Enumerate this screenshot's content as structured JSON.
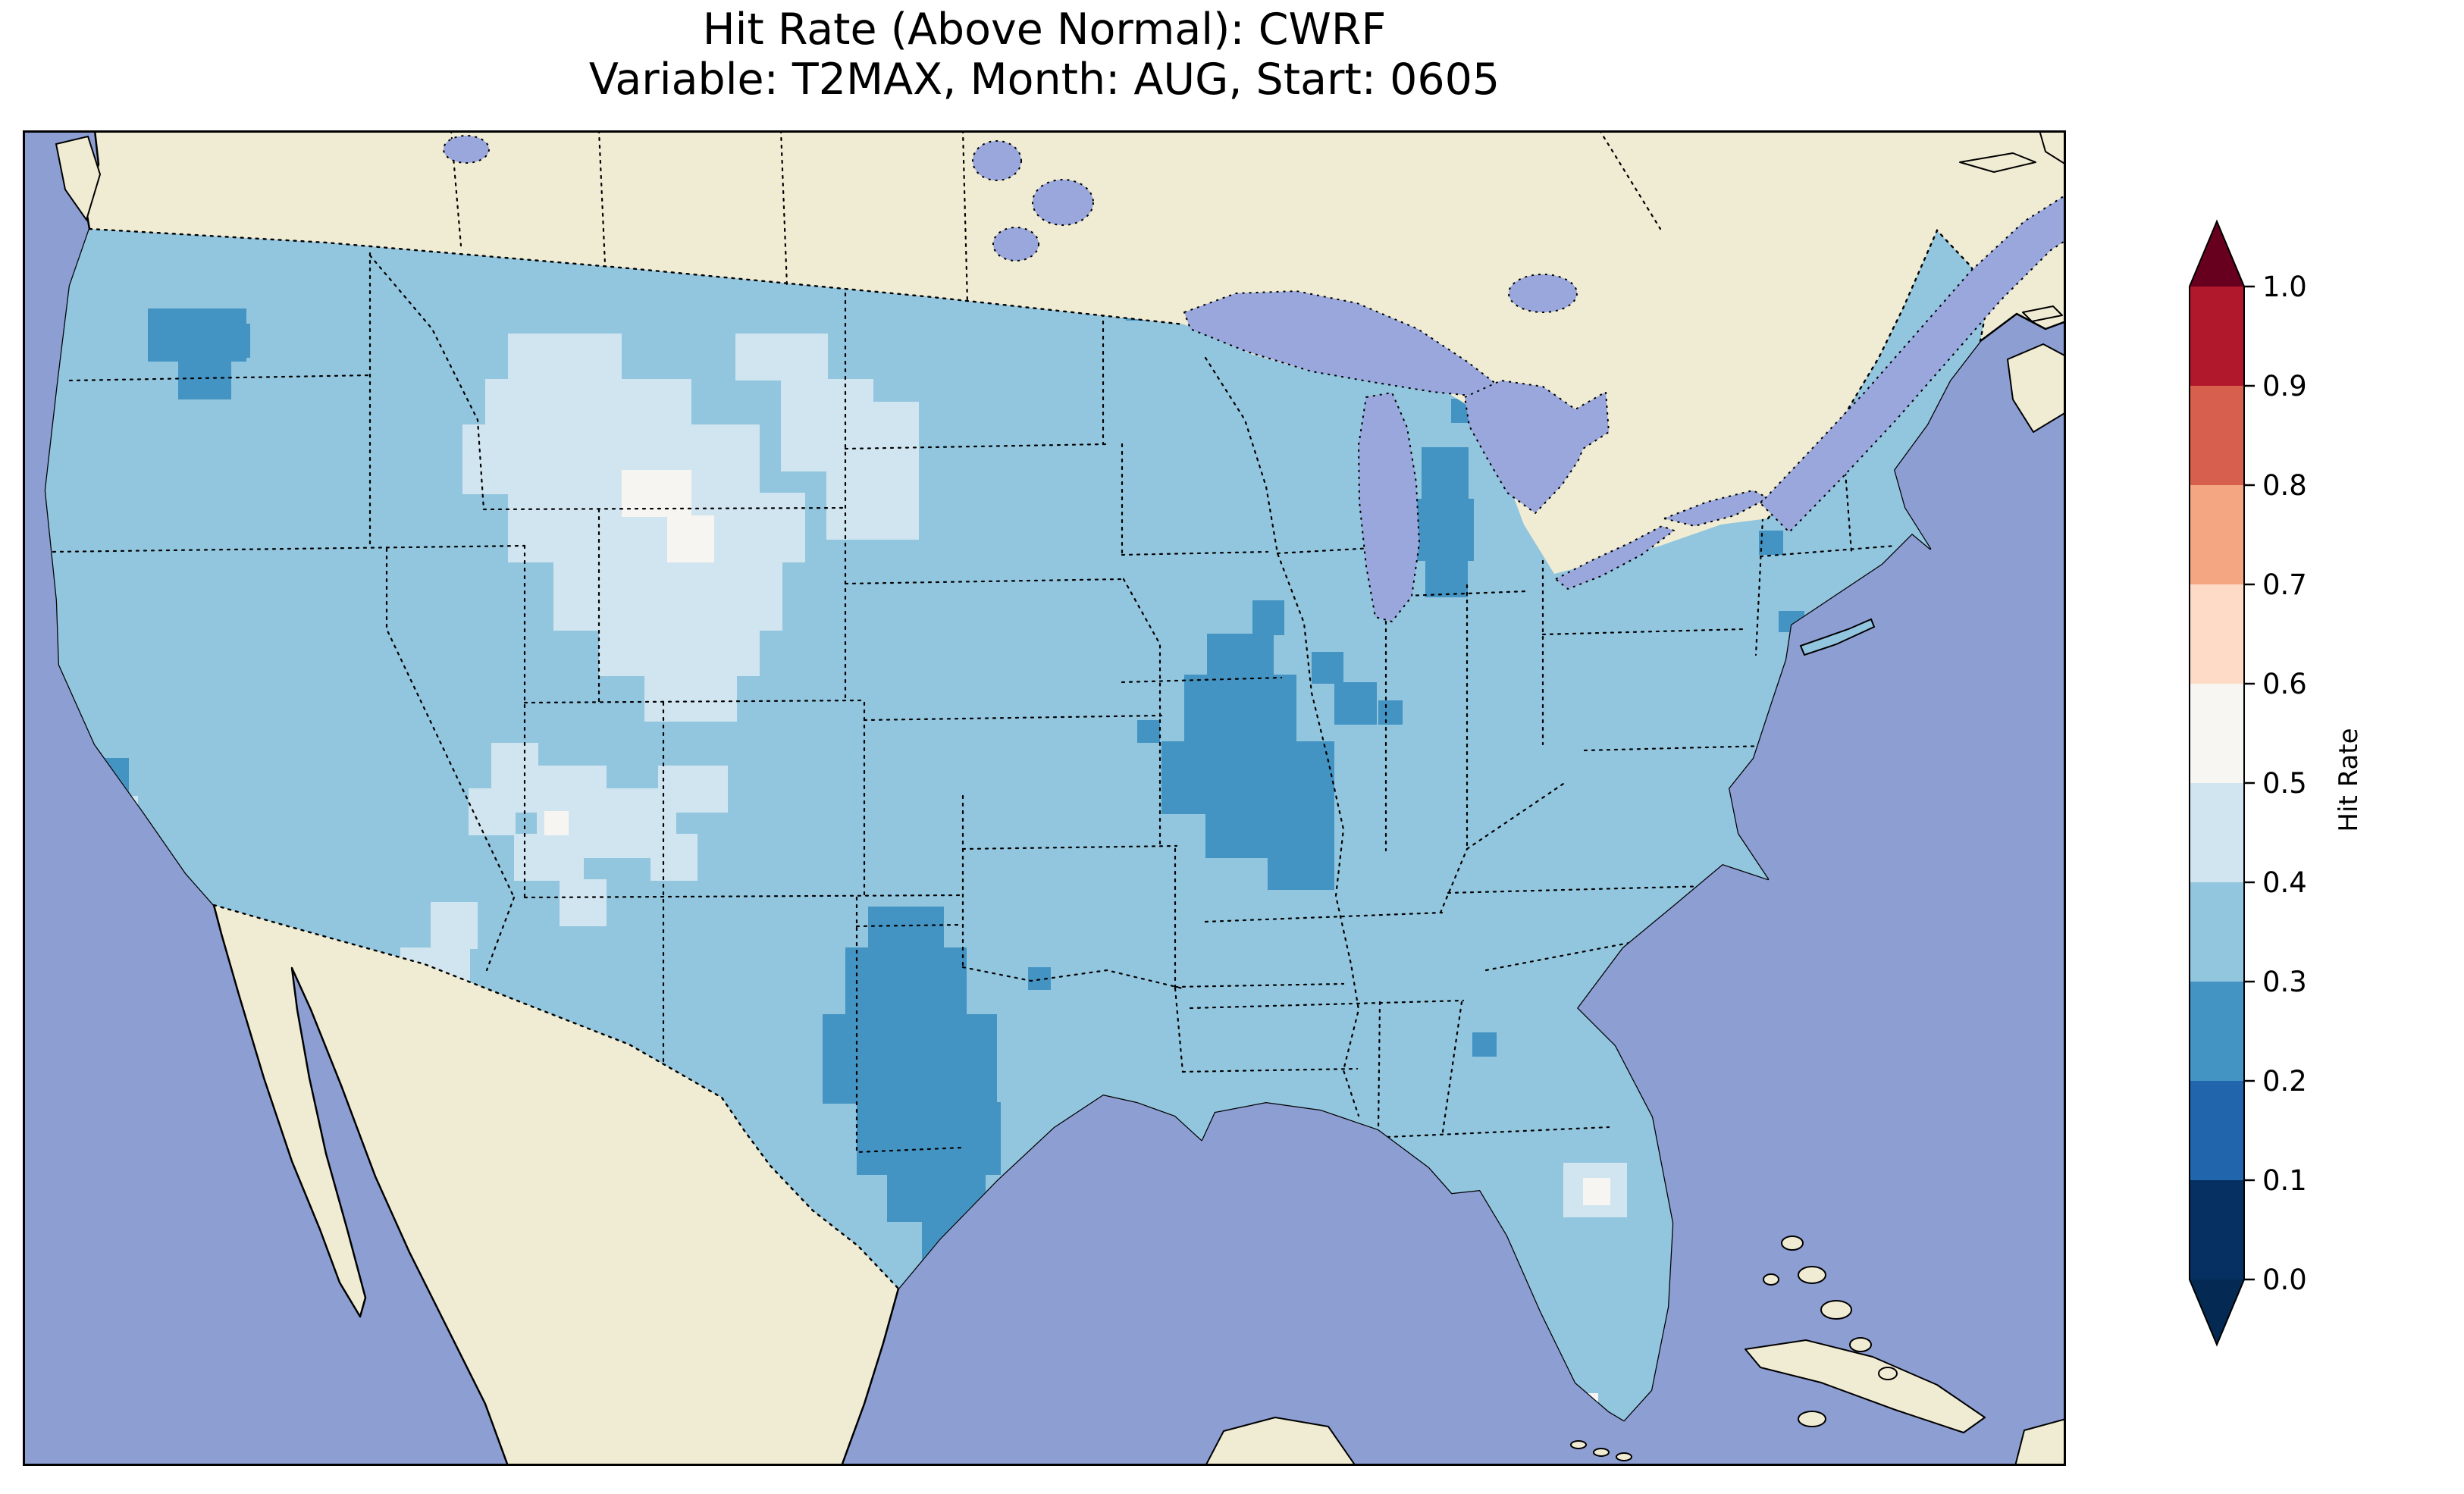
{
  "figure": {
    "title_line1": "Hit Rate (Above Normal): CWRF",
    "title_line2": "Variable: T2MAX, Month: AUG, Start: 0605",
    "background": "#ffffff"
  },
  "colorbar": {
    "label": "Hit Rate",
    "tick_labels_top_to_bottom": [
      "1.0",
      "0.9",
      "0.8",
      "0.7",
      "0.6",
      "0.5",
      "0.4",
      "0.3",
      "0.2",
      "0.1",
      "0.0"
    ],
    "extend": "both",
    "under_color": "#042a54",
    "over_color": "#67001f",
    "bins_bottom_to_top": [
      {
        "range": "0.0–0.1",
        "color": "#053061"
      },
      {
        "range": "0.1–0.2",
        "color": "#2166ac"
      },
      {
        "range": "0.2–0.3",
        "color": "#4393c3"
      },
      {
        "range": "0.3–0.4",
        "color": "#92c5de"
      },
      {
        "range": "0.4–0.5",
        "color": "#d1e5f0"
      },
      {
        "range": "0.5–0.6",
        "color": "#f7f6f3"
      },
      {
        "range": "0.6–0.7",
        "color": "#fddbc7"
      },
      {
        "range": "0.7–0.8",
        "color": "#f4a582"
      },
      {
        "range": "0.8–0.9",
        "color": "#d6604d"
      },
      {
        "range": "0.9–1.0",
        "color": "#b2182b"
      }
    ]
  },
  "map": {
    "colors": {
      "ocean": "#8d9ed3",
      "land": "#f0ecd3",
      "lake": "#99a7dd",
      "us_base": "#92c5de",
      "coastline": "#000000"
    },
    "patches": [
      {
        "bin": "0.4-0.5",
        "color": "#d1e5f0",
        "rects": [
          [
            640,
            268,
            150,
            62
          ],
          [
            610,
            328,
            272,
            62
          ],
          [
            580,
            388,
            392,
            92
          ],
          [
            640,
            478,
            392,
            92
          ],
          [
            700,
            568,
            302,
            92
          ],
          [
            760,
            658,
            212,
            62
          ],
          [
            820,
            718,
            122,
            62
          ],
          [
            1000,
            328,
            122,
            122
          ],
          [
            1060,
            448,
            122,
            92
          ],
          [
            940,
            268,
            122,
            62
          ],
          [
            1120,
            358,
            62,
            122
          ],
          [
            618,
            808,
            62,
            92
          ],
          [
            678,
            838,
            92,
            122
          ],
          [
            770,
            868,
            92,
            92
          ],
          [
            648,
            928,
            92,
            62
          ],
          [
            708,
            988,
            62,
            62
          ],
          [
            588,
            868,
            62,
            62
          ],
          [
            838,
            838,
            92,
            62
          ],
          [
            828,
            928,
            62,
            62
          ],
          [
            538,
            1018,
            62,
            62
          ],
          [
            498,
            1078,
            92,
            62
          ],
          [
            558,
            1138,
            62,
            62
          ],
          [
            478,
            1138,
            32,
            32
          ],
          [
            110,
            878,
            42,
            42
          ],
          [
            2032,
            1362,
            84,
            72
          ]
        ]
      },
      {
        "bin": "0.2-0.3",
        "color": "#4393c3",
        "rects": [
          [
            165,
            235,
            130,
            70
          ],
          [
            205,
            300,
            70,
            55
          ],
          [
            245,
            255,
            55,
            45
          ],
          [
            62,
            828,
            78,
            56
          ],
          [
            1455,
            215,
            36,
            36
          ],
          [
            2398,
            190,
            42,
            58
          ],
          [
            2132,
            458,
            30,
            30
          ],
          [
            2290,
            528,
            32,
            32
          ],
          [
            2316,
            634,
            34,
            28
          ],
          [
            1845,
            418,
            62,
            70
          ],
          [
            1836,
            486,
            78,
            82
          ],
          [
            1850,
            566,
            56,
            50
          ],
          [
            1884,
            354,
            38,
            32
          ],
          [
            1562,
            664,
            88,
            56
          ],
          [
            1532,
            718,
            148,
            90
          ],
          [
            1502,
            806,
            228,
            96
          ],
          [
            1560,
            900,
            170,
            60
          ],
          [
            1642,
            958,
            88,
            44
          ],
          [
            1730,
            728,
            56,
            56
          ],
          [
            1700,
            688,
            42,
            42
          ],
          [
            1622,
            620,
            42,
            46
          ],
          [
            1788,
            752,
            32,
            32
          ],
          [
            1470,
            778,
            30,
            30
          ],
          [
            1115,
            1024,
            100,
            56
          ],
          [
            1085,
            1078,
            160,
            90
          ],
          [
            1055,
            1166,
            230,
            118
          ],
          [
            1100,
            1282,
            190,
            96
          ],
          [
            1140,
            1374,
            130,
            66
          ],
          [
            1186,
            1438,
            74,
            54
          ],
          [
            1326,
            1104,
            30,
            30
          ],
          [
            1912,
            1190,
            32,
            32
          ]
        ]
      },
      {
        "bin": "0.5-0.6",
        "color": "#f7f5f1",
        "rects": [
          [
            790,
            448,
            92,
            62
          ],
          [
            850,
            508,
            62,
            62
          ],
          [
            688,
            898,
            32,
            32
          ],
          [
            2058,
            1382,
            36,
            36
          ],
          [
            1994,
            1652,
            30,
            30
          ],
          [
            2048,
            1666,
            30,
            30
          ]
        ]
      }
    ]
  },
  "chart_data": {
    "type": "heatmap",
    "title": "Hit Rate (Above Normal): CWRF",
    "subtitle": "Variable: T2MAX, Month: AUG, Start: 0605",
    "metric": "Hit Rate (Above Normal)",
    "model": "CWRF",
    "variable": "T2MAX",
    "month": "AUG",
    "start": "0605",
    "map_domain": "Contiguous United States with surrounding Canada, Mexico, oceans, Great Lakes",
    "colorbar_label": "Hit Rate",
    "colorbar_ticks": [
      0.0,
      0.1,
      0.2,
      0.3,
      0.4,
      0.5,
      0.6,
      0.7,
      0.8,
      0.9,
      1.0
    ],
    "colormap": "RdBu diverging (dark blue low, white mid, dark red high), pointed extension arrows at both ends",
    "observed_values": [
      {
        "region": "Most of the contiguous United States",
        "hit_rate_bin": "0.3–0.4"
      },
      {
        "region": "Montana / Wyoming / western Dakotas / Nebraska panhandle (large pale area)",
        "hit_rate_bin": "0.4–0.5, locally 0.5–0.6"
      },
      {
        "region": "Utah and western Colorado patches",
        "hit_rate_bin": "0.4–0.5"
      },
      {
        "region": "Nevada / northern Arizona small patches",
        "hit_rate_bin": "0.4–0.5"
      },
      {
        "region": "Central Texas (large dark blob)",
        "hit_rate_bin": "0.2–0.3"
      },
      {
        "region": "Illinois / Indiana / western Kentucky (Ohio Valley blob)",
        "hit_rate_bin": "0.2–0.3"
      },
      {
        "region": "Lower Michigan near Lake Michigan",
        "hit_rate_bin": "0.2–0.3"
      },
      {
        "region": "Northeastern Washington",
        "hit_rate_bin": "0.2–0.3"
      },
      {
        "region": "Northern California coastal spot",
        "hit_rate_bin": "0.2–0.3"
      },
      {
        "region": "Small spots: northern Minnesota, northern Maine, southern New England, central Georgia",
        "hit_rate_bin": "0.2–0.3"
      },
      {
        "region": "Central Florida small patches and two white cells near south Florida",
        "hit_rate_bin": "0.4–0.6"
      },
      {
        "region": "No grid cells above 0.6 or below 0.2 appear on the map",
        "hit_rate_bin": "—"
      }
    ]
  }
}
